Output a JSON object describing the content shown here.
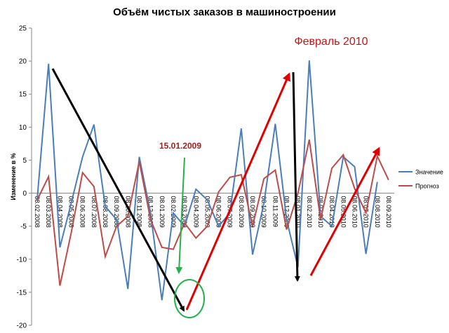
{
  "chart_data": {
    "type": "line",
    "title": "Объём чистых заказов в машиностроении",
    "y_label": "Изменение в %",
    "categories": [
      "08.02.2008",
      "08.03.2008",
      "08.04.2008",
      "08.05.2008",
      "08.06.2008",
      "08.07.2008",
      "08.08.2008",
      "08.09.2008",
      "08.10.2008",
      "08.11.2008",
      "08.12.2008",
      "08.01.2009",
      "08.02.2009",
      "08.03.2009",
      "08.04.2009",
      "08.05.2009",
      "08.06.2009",
      "08.07.2009",
      "08.08.2009",
      "08.09.2009",
      "08.10.2009",
      "08.11.2009",
      "08.12.2009",
      "08.01.2010",
      "08.02.2010",
      "08.03.2010",
      "08.04.2010",
      "08.05.2010",
      "08.06.2010",
      "08.07.2010",
      "08.08.2010",
      "08.09.2010"
    ],
    "series": [
      {
        "name": "Значение",
        "color": "#4a7ebb",
        "values": [
          -0.8,
          19.6,
          -8.2,
          -1.5,
          5.5,
          10.4,
          -2,
          -4,
          -14.5,
          5.5,
          -3,
          -16.2,
          -3,
          -5,
          0.6,
          -1,
          -5,
          -3,
          9.8,
          -9.3,
          -1.5,
          10.5,
          -4,
          -11.2,
          20.1,
          -3.5,
          -5,
          5.5,
          4,
          -9.2,
          1.7,
          null
        ]
      },
      {
        "name": "Прогноз",
        "color": "#be4b48",
        "values": [
          -1,
          2.5,
          -14,
          -6,
          3.1,
          1,
          -9.6,
          -5,
          -3.5,
          4.8,
          -4,
          -8.2,
          -8.5,
          -4.5,
          -6.8,
          -5,
          0.2,
          2.4,
          2.8,
          -5,
          2.2,
          3.5,
          -5.5,
          0,
          8.1,
          -4,
          3.8,
          5.8,
          0.7,
          -3,
          5.6,
          2
        ]
      }
    ],
    "ylim": [
      -20,
      25
    ],
    "yticks": [
      -20,
      -15,
      -10,
      -5,
      0,
      5,
      10,
      15,
      20,
      25
    ],
    "legend": "right",
    "annotations": [
      "15.01.2009",
      "Февраль 2010"
    ]
  }
}
